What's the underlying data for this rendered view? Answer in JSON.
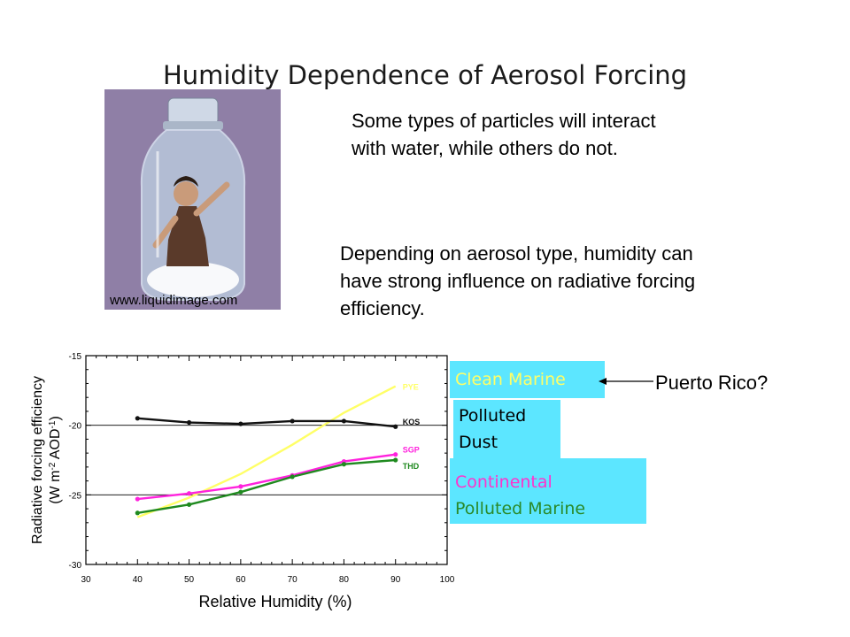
{
  "title": "Humidity Dependence  of Aerosol Forcing",
  "photo": {
    "caption": "www.liquidimage.com",
    "icon": "person-in-salt-shaker-image"
  },
  "text1": [
    "Some types of particles will interact",
    "with water, while others do not."
  ],
  "text2": [
    "Depending on aerosol type, humidity can",
    "have strong influence on radiative forcing",
    "efficiency."
  ],
  "legend": {
    "clean_marine": "Clean Marine",
    "polluted_dust": [
      "Polluted",
      "Dust"
    ],
    "continental": "Continental",
    "polluted_marine": "Polluted Marine",
    "callout": "Puerto Rico?"
  },
  "colors": {
    "clean": "#ffff66",
    "kos": "#111111",
    "sgp": "#ff22dd",
    "thd": "#1f8a1f",
    "box": "#5ce6ff"
  },
  "chart_data": {
    "type": "line",
    "xlabel": "Relative Humidity  (%)",
    "ylabel_lines": [
      "Radiative forcing efficiency",
      "(W m",
      "-2",
      " AOD",
      "-1",
      ")"
    ],
    "xlim": [
      30,
      100
    ],
    "ylim": [
      -30,
      -15
    ],
    "xticks": [
      30,
      40,
      50,
      60,
      70,
      80,
      90,
      100
    ],
    "yticks": [
      -15,
      -20,
      -25,
      -30
    ],
    "reference_lines": [
      -20,
      -25
    ],
    "series": [
      {
        "name": "PYE",
        "color": "#ffff66",
        "markers": false,
        "x": [
          40,
          50,
          60,
          70,
          80,
          90
        ],
        "y": [
          -26.6,
          -25.2,
          -23.5,
          -21.4,
          -19.1,
          -17.2
        ]
      },
      {
        "name": "KOS",
        "color": "#111111",
        "markers": true,
        "x": [
          40,
          50,
          60,
          70,
          80,
          90
        ],
        "y": [
          -19.5,
          -19.8,
          -19.9,
          -19.7,
          -19.7,
          -20.1
        ]
      },
      {
        "name": "SGP",
        "color": "#ff22dd",
        "markers": true,
        "x": [
          40,
          50,
          60,
          70,
          80,
          90
        ],
        "y": [
          -25.3,
          -24.9,
          -24.4,
          -23.6,
          -22.6,
          -22.1
        ]
      },
      {
        "name": "THD",
        "color": "#1f8a1f",
        "markers": true,
        "x": [
          40,
          50,
          60,
          70,
          80,
          90
        ],
        "y": [
          -26.3,
          -25.7,
          -24.8,
          -23.7,
          -22.8,
          -22.5
        ]
      }
    ]
  }
}
